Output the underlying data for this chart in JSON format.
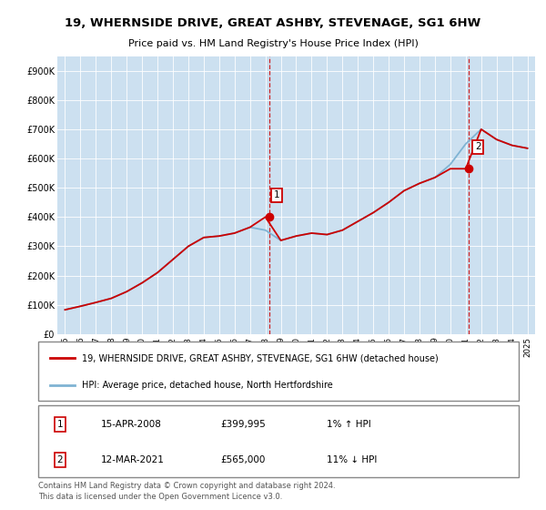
{
  "title": "19, WHERNSIDE DRIVE, GREAT ASHBY, STEVENAGE, SG1 6HW",
  "subtitle": "Price paid vs. HM Land Registry's House Price Index (HPI)",
  "legend_line1": "19, WHERNSIDE DRIVE, GREAT ASHBY, STEVENAGE, SG1 6HW (detached house)",
  "legend_line2": "HPI: Average price, detached house, North Hertfordshire",
  "footnote": "Contains HM Land Registry data © Crown copyright and database right 2024.\nThis data is licensed under the Open Government Licence v3.0.",
  "sale1_date": "15-APR-2008",
  "sale1_price": "£399,995",
  "sale1_hpi": "1% ↑ HPI",
  "sale2_date": "12-MAR-2021",
  "sale2_price": "£565,000",
  "sale2_hpi": "11% ↓ HPI",
  "property_color": "#cc0000",
  "hpi_color": "#7fb3d3",
  "sale_marker_color": "#cc0000",
  "dashed_line_color": "#cc0000",
  "background_color": "#cce0f0",
  "ylim": [
    0,
    950000
  ],
  "yticks": [
    0,
    100000,
    200000,
    300000,
    400000,
    500000,
    600000,
    700000,
    800000,
    900000
  ],
  "ytick_labels": [
    "£0",
    "£100K",
    "£200K",
    "£300K",
    "£400K",
    "£500K",
    "£600K",
    "£700K",
    "£800K",
    "£900K"
  ],
  "years": [
    1995,
    1996,
    1997,
    1998,
    1999,
    2000,
    2001,
    2002,
    2003,
    2004,
    2005,
    2006,
    2007,
    2008,
    2009,
    2010,
    2011,
    2012,
    2013,
    2014,
    2015,
    2016,
    2017,
    2018,
    2019,
    2020,
    2021,
    2022,
    2023,
    2024,
    2025
  ],
  "hpi_values": [
    83000,
    95000,
    108000,
    122000,
    145000,
    175000,
    210000,
    255000,
    300000,
    330000,
    335000,
    345000,
    365000,
    355000,
    320000,
    335000,
    345000,
    340000,
    355000,
    385000,
    415000,
    450000,
    490000,
    515000,
    535000,
    580000,
    650000,
    700000,
    665000,
    645000,
    635000
  ],
  "prop_values": [
    83000,
    95000,
    108000,
    122000,
    145000,
    175000,
    210000,
    255000,
    300000,
    330000,
    335000,
    345000,
    365000,
    399995,
    320000,
    335000,
    345000,
    340000,
    355000,
    385000,
    415000,
    450000,
    490000,
    515000,
    535000,
    565000,
    565000,
    700000,
    665000,
    645000,
    635000
  ],
  "sale1_x": 2008.25,
  "sale1_y": 399995,
  "sale2_x": 2021.2,
  "sale2_y": 565000,
  "xlim": [
    1994.5,
    2025.5
  ],
  "xtick_years": [
    1995,
    1996,
    1997,
    1998,
    1999,
    2000,
    2001,
    2002,
    2003,
    2004,
    2005,
    2006,
    2007,
    2008,
    2009,
    2010,
    2011,
    2012,
    2013,
    2014,
    2015,
    2016,
    2017,
    2018,
    2019,
    2020,
    2021,
    2022,
    2023,
    2024,
    2025
  ]
}
